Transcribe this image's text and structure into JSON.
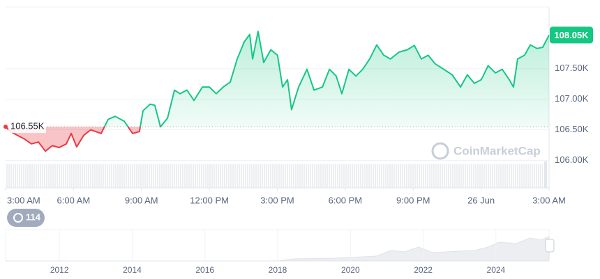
{
  "chart_data": {
    "type": "line",
    "x": [
      0,
      0.22,
      0.83,
      1.14,
      1.45,
      1.76,
      2.06,
      2.37,
      2.68,
      2.9,
      3.14,
      3.45,
      3.76,
      4.22,
      4.53,
      4.84,
      5.24,
      5.61,
      5.91,
      6.07,
      6.38,
      6.59,
      6.84,
      7.15,
      7.46,
      7.7,
      8.01,
      8.32,
      8.69,
      9.0,
      9.3,
      9.61,
      9.92,
      10.23,
      10.54,
      10.78,
      10.91,
      11.15,
      11.4,
      11.71,
      12.01,
      12.23,
      12.45,
      12.63,
      12.94,
      13.31,
      13.62,
      13.99,
      14.3,
      14.6,
      14.85,
      15.16,
      15.47,
      15.77,
      16.08,
      16.39,
      16.7,
      17.0,
      17.37,
      17.74,
      18.05,
      18.36,
      18.66,
      18.97,
      19.35,
      19.72,
      20.09,
      20.39,
      20.7,
      21.01,
      21.31,
      21.63,
      21.93,
      22.24,
      22.43,
      22.61,
      22.92,
      23.17,
      23.47,
      23.72,
      24
    ],
    "values": [
      106.55,
      106.47,
      106.35,
      106.27,
      106.3,
      106.15,
      106.24,
      106.21,
      106.27,
      106.44,
      106.22,
      106.41,
      106.5,
      106.44,
      106.67,
      106.72,
      106.64,
      106.44,
      106.47,
      106.81,
      106.92,
      106.9,
      106.55,
      106.69,
      107.15,
      107.09,
      107.15,
      106.98,
      107.2,
      107.2,
      107.09,
      107.2,
      107.28,
      107.66,
      107.94,
      108.06,
      107.66,
      108.11,
      107.6,
      107.81,
      107.72,
      107.2,
      107.32,
      106.83,
      107.2,
      107.49,
      107.15,
      107.2,
      107.49,
      107.38,
      107.09,
      107.49,
      107.38,
      107.49,
      107.66,
      107.89,
      107.72,
      107.66,
      107.77,
      107.81,
      107.88,
      107.66,
      107.72,
      107.58,
      107.49,
      107.4,
      107.2,
      107.4,
      107.26,
      107.32,
      107.55,
      107.43,
      107.49,
      107.32,
      107.2,
      107.66,
      107.72,
      107.89,
      107.83,
      107.85,
      108.05
    ],
    "up_color": "#16c784",
    "down_color": "#ea3943",
    "xlim": [
      0,
      24
    ],
    "xticks": [
      {
        "value": 0,
        "label": "3:00 AM"
      },
      {
        "value": 3,
        "label": "6:00 AM"
      },
      {
        "value": 6,
        "label": "9:00 AM"
      },
      {
        "value": 9,
        "label": "12:00 PM"
      },
      {
        "value": 12,
        "label": "3:00 PM"
      },
      {
        "value": 15,
        "label": "6:00 PM"
      },
      {
        "value": 18,
        "label": "9:00 PM"
      },
      {
        "value": 21,
        "label": "26 Jun"
      },
      {
        "value": 24,
        "label": "3:00 AM"
      }
    ],
    "ylim": [
      105.55,
      108.51
    ],
    "yticks": [
      {
        "value": 107.5,
        "label": "107.50K"
      },
      {
        "value": 107.0,
        "label": "107.00K"
      },
      {
        "value": 106.5,
        "label": "106.50K"
      },
      {
        "value": 106.0,
        "label": "106.00K"
      }
    ],
    "grid": true,
    "baseline": {
      "value": 106.55,
      "label": "106.55K"
    },
    "price_label": {
      "value": 108.05,
      "label": "108.05K"
    },
    "watermark": "CoinMarketCap",
    "history_count": 114,
    "navigator": {
      "xlim": [
        2010.52,
        2025.46
      ],
      "xticks": [
        2012,
        2014,
        2016,
        2018,
        2020,
        2022,
        2024
      ]
    }
  }
}
